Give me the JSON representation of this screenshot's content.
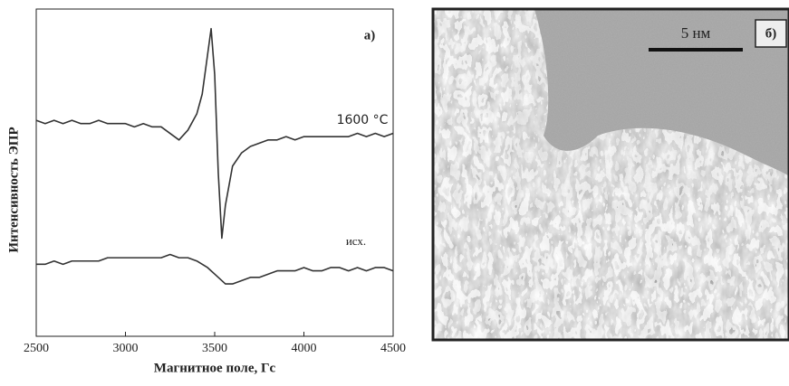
{
  "chart_data": {
    "type": "line",
    "panel_label": "а)",
    "x_label": "Магнитное поле, Гс",
    "y_label": "Интенсивность ЭПР",
    "x": [
      2500,
      2550,
      2600,
      2650,
      2700,
      2750,
      2800,
      2850,
      2900,
      2950,
      3000,
      3050,
      3100,
      3150,
      3200,
      3250,
      3300,
      3350,
      3400,
      3430,
      3460,
      3480,
      3500,
      3520,
      3540,
      3560,
      3600,
      3650,
      3700,
      3750,
      3800,
      3850,
      3900,
      3950,
      4000,
      4050,
      4100,
      4150,
      4200,
      4250,
      4300,
      4350,
      4400,
      4450,
      4500
    ],
    "series": [
      {
        "name": "1600 °C",
        "color": "#333333",
        "values": [
          66,
          65,
          66,
          65,
          66,
          65,
          65,
          66,
          65,
          65,
          65,
          64,
          65,
          64,
          64,
          62,
          60,
          63,
          68,
          74,
          86,
          94,
          80,
          50,
          30,
          40,
          52,
          56,
          58,
          59,
          60,
          60,
          61,
          60,
          61,
          61,
          61,
          61,
          61,
          61,
          62,
          61,
          62,
          61,
          62
        ]
      },
      {
        "name": "исх.",
        "color": "#333333",
        "values": [
          22,
          22,
          23,
          22,
          23,
          23,
          23,
          23,
          24,
          24,
          24,
          24,
          24,
          24,
          24,
          25,
          24,
          24,
          23,
          22,
          21,
          20,
          19,
          18,
          17,
          16,
          16,
          17,
          18,
          18,
          19,
          20,
          20,
          20,
          21,
          20,
          20,
          21,
          21,
          20,
          21,
          20,
          21,
          21,
          20
        ]
      }
    ],
    "xlim": [
      2500,
      4500
    ],
    "ylim": [
      0,
      100
    ],
    "xticks": [
      2500,
      3000,
      3500,
      4000,
      4500
    ]
  },
  "image_panel": {
    "panel_label": "б)",
    "scale_bar": "5 нм"
  }
}
